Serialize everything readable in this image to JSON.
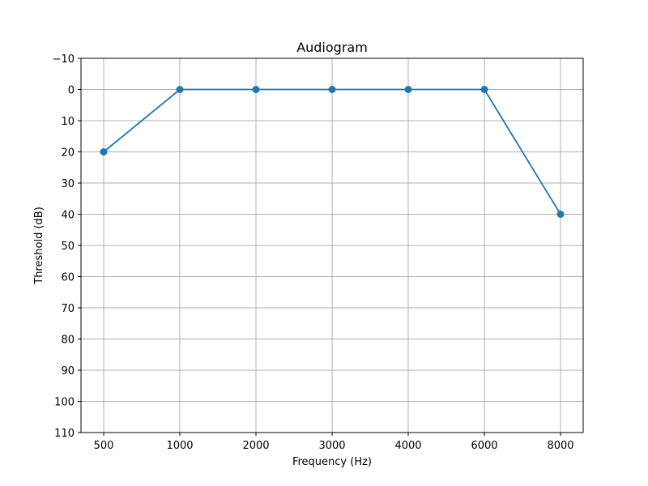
{
  "chart_data": {
    "type": "line",
    "title": "Audiogram",
    "xlabel": "Frequency (Hz)",
    "ylabel": "Threshold (dB)",
    "categories": [
      "500",
      "1000",
      "2000",
      "3000",
      "4000",
      "6000",
      "8000"
    ],
    "series": [
      {
        "values": [
          20,
          0,
          0,
          0,
          0,
          0,
          40
        ],
        "color": "#1f77b4"
      }
    ],
    "yticks": [
      "−10",
      "0",
      "10",
      "20",
      "30",
      "40",
      "50",
      "60",
      "70",
      "80",
      "90",
      "100",
      "110"
    ],
    "ylim": [
      -10,
      110
    ],
    "y_inverted": true,
    "grid": true
  }
}
